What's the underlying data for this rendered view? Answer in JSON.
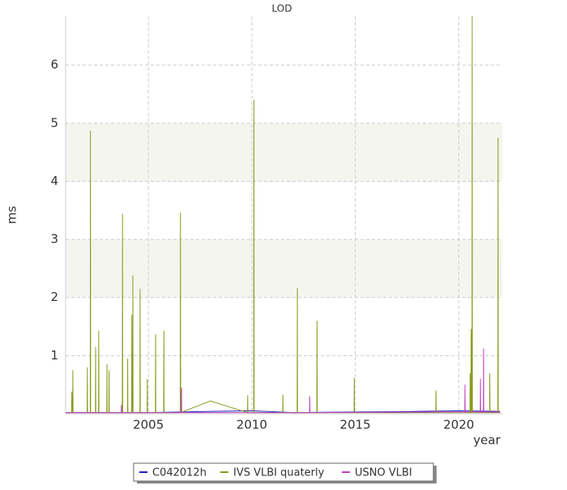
{
  "chart_data": {
    "type": "line",
    "title": "LOD",
    "x_label": "year",
    "y_label": "ms",
    "xlim": [
      2001,
      2022.1
    ],
    "xticks": [
      2005,
      2010,
      2015,
      2020
    ],
    "ylim": [
      0,
      6.84
    ],
    "yticks": [
      1,
      2,
      3,
      4,
      5,
      6
    ],
    "grid": true,
    "alternate_bands": true,
    "legend": "bottom",
    "series": [
      {
        "name": "C042012h",
        "color": "#2020c0",
        "x": [
          2001.0,
          2005.0,
          2008.0,
          2010.0,
          2012.0,
          2018.0,
          2020.0,
          2022.0
        ],
        "values": [
          0.02,
          0.02,
          0.04,
          0.05,
          0.02,
          0.04,
          0.05,
          0.04
        ]
      },
      {
        "name": "IVS VLBI quaterly",
        "color": "#8a9a1e",
        "x": [
          2001.0,
          2001.29,
          2001.3,
          2001.31,
          2001.34,
          2001.35,
          2001.36,
          2002.04,
          2002.05,
          2002.06,
          2002.19,
          2002.2,
          2002.21,
          2002.44,
          2002.45,
          2002.46,
          2002.59,
          2002.6,
          2002.61,
          2002.99,
          2003.0,
          2003.01,
          2003.09,
          2003.1,
          2003.11,
          2003.74,
          2003.75,
          2003.76,
          2003.99,
          2004.0,
          2004.01,
          2004.19,
          2004.2,
          2004.21,
          2004.24,
          2004.25,
          2004.26,
          2004.59,
          2004.6,
          2004.61,
          2004.94,
          2004.95,
          2004.96,
          2005.34,
          2005.35,
          2005.36,
          2005.74,
          2005.75,
          2005.76,
          2006.54,
          2006.55,
          2006.56,
          2008.0,
          2009.79,
          2009.8,
          2009.81,
          2010.09,
          2010.1,
          2010.11,
          2011.49,
          2011.5,
          2011.51,
          2012.19,
          2012.2,
          2012.21,
          2013.14,
          2013.15,
          2013.16,
          2014.94,
          2014.95,
          2014.96,
          2018.89,
          2018.9,
          2018.91,
          2020.54,
          2020.55,
          2020.56,
          2020.59,
          2020.6,
          2020.61,
          2020.64,
          2020.65,
          2020.66,
          2021.49,
          2021.5,
          2021.51,
          2021.89,
          2021.9,
          2021.91,
          2022.0
        ],
        "values": [
          0.02,
          0.02,
          0.38,
          0.02,
          0.02,
          0.75,
          0.02,
          0.02,
          0.8,
          0.02,
          0.02,
          4.87,
          0.02,
          0.02,
          1.15,
          0.02,
          0.02,
          1.43,
          0.02,
          0.02,
          0.85,
          0.02,
          0.02,
          0.75,
          0.02,
          0.02,
          3.44,
          0.02,
          0.02,
          0.95,
          0.02,
          0.02,
          1.7,
          0.02,
          0.02,
          2.38,
          0.02,
          0.02,
          2.15,
          0.02,
          0.02,
          0.6,
          0.02,
          0.02,
          1.37,
          0.02,
          0.02,
          1.43,
          0.02,
          0.02,
          3.46,
          0.02,
          0.22,
          0.02,
          0.32,
          0.02,
          0.02,
          5.4,
          0.02,
          0.02,
          0.33,
          0.02,
          0.02,
          2.16,
          0.02,
          0.02,
          1.6,
          0.02,
          0.02,
          0.62,
          0.02,
          0.02,
          0.4,
          0.02,
          0.02,
          0.7,
          0.02,
          0.02,
          1.46,
          0.02,
          0.02,
          6.84,
          0.02,
          0.02,
          0.7,
          0.02,
          0.02,
          4.75,
          0.02,
          0.02
        ]
      },
      {
        "name": "USNO VLBI",
        "color": "#c040c0",
        "x": [
          2001.0,
          2003.69,
          2003.7,
          2003.71,
          2006.59,
          2006.6,
          2006.61,
          2012.79,
          2012.8,
          2012.81,
          2019.0,
          2020.29,
          2020.3,
          2020.31,
          2021.04,
          2021.05,
          2021.06,
          2021.19,
          2021.2,
          2021.21,
          2022.0
        ],
        "values": [
          0.02,
          0.02,
          0.15,
          0.02,
          0.02,
          0.45,
          0.02,
          0.02,
          0.3,
          0.02,
          0.03,
          0.03,
          0.5,
          0.03,
          0.03,
          0.6,
          0.03,
          0.03,
          1.12,
          0.03,
          0.03
        ]
      }
    ]
  }
}
